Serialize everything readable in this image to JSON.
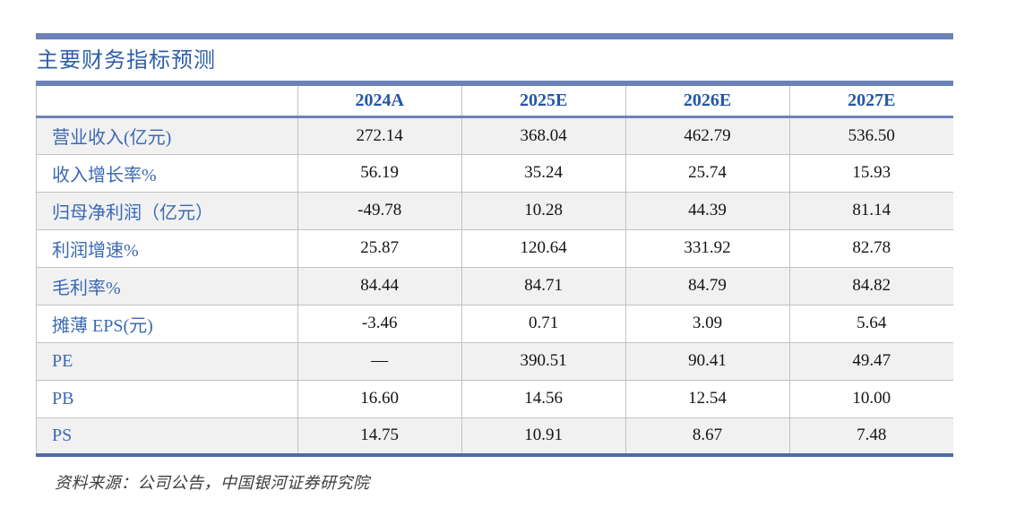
{
  "page": {
    "title": "主要财务指标预测",
    "source_note": "资料来源：公司公告，中国银河证券研究院"
  },
  "table": {
    "corner_label": "",
    "columns": [
      "2024A",
      "2025E",
      "2026E",
      "2027E"
    ],
    "rows": [
      {
        "label": "营业收入(亿元)",
        "values": [
          "272.14",
          "368.04",
          "462.79",
          "536.50"
        ]
      },
      {
        "label": "收入增长率%",
        "values": [
          "56.19",
          "35.24",
          "25.74",
          "15.93"
        ]
      },
      {
        "label": "归母净利润（亿元）",
        "values": [
          "-49.78",
          "10.28",
          "44.39",
          "81.14"
        ]
      },
      {
        "label": "利润增速%",
        "values": [
          "25.87",
          "120.64",
          "331.92",
          "82.78"
        ]
      },
      {
        "label": "毛利率%",
        "values": [
          "84.44",
          "84.71",
          "84.79",
          "84.82"
        ]
      },
      {
        "label": "摊薄 EPS(元)",
        "values": [
          "-3.46",
          "0.71",
          "3.09",
          "5.64"
        ]
      },
      {
        "label": "PE",
        "values": [
          "—",
          "390.51",
          "90.41",
          "49.47"
        ]
      },
      {
        "label": "PB",
        "values": [
          "16.60",
          "14.56",
          "12.54",
          "10.00"
        ]
      },
      {
        "label": "PS",
        "values": [
          "14.75",
          "10.91",
          "8.67",
          "7.48"
        ]
      }
    ]
  },
  "colors": {
    "accent_bar": "#6d83b8",
    "table_bottom_border": "#4d69ad",
    "title_text": "#2e5fab",
    "column_header_text": "#2457a8",
    "row_label_text": "#3b69b4",
    "grid_line": "#c2c2c2",
    "stripe_background": "#f1f1f1",
    "number_text": "#141414",
    "source_text": "#3d3d3d"
  }
}
